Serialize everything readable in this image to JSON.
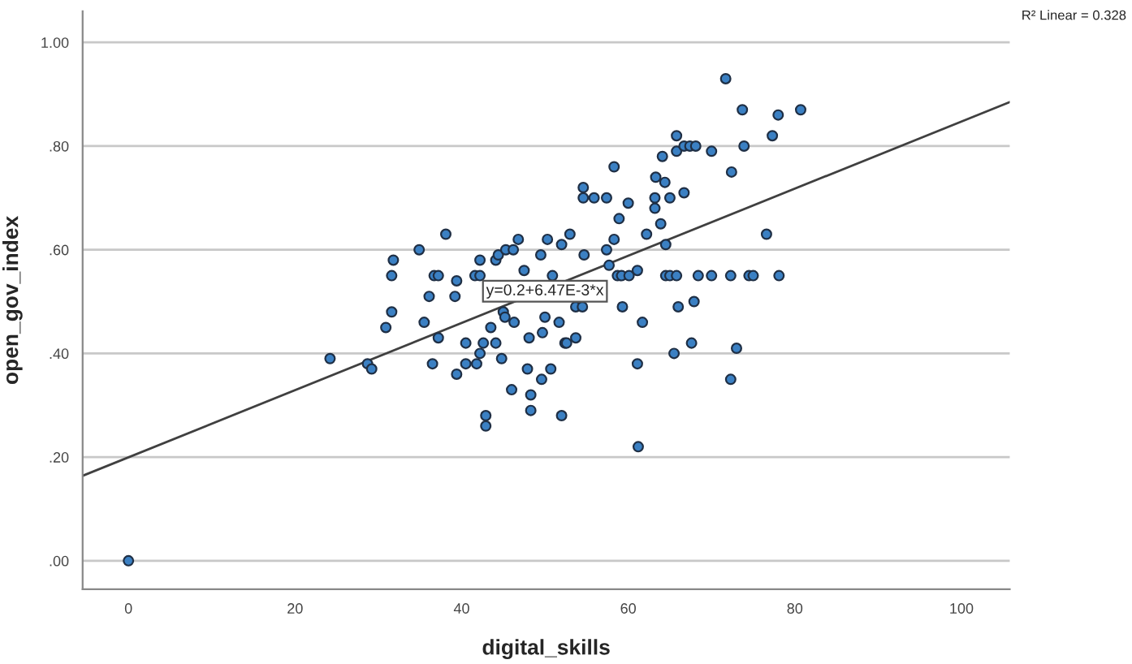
{
  "chart_data": {
    "type": "scatter",
    "xlabel": "digital_skills",
    "ylabel": "open_gov_index",
    "xlim": [
      -5.5,
      105.8
    ],
    "ylim": [
      -0.055,
      1.06
    ],
    "xticks": [
      0,
      20,
      40,
      60,
      80,
      100
    ],
    "yticks": [
      {
        "value": 0,
        "label": ".00"
      },
      {
        "value": 0.2,
        "label": ".20"
      },
      {
        "value": 0.4,
        "label": ".40"
      },
      {
        "value": 0.6,
        "label": ".60"
      },
      {
        "value": 0.8,
        "label": ".80"
      },
      {
        "value": 1.0,
        "label": "1.00"
      }
    ],
    "grid": "y",
    "annotations": [
      {
        "text": "y=0.2+6.47E-3*x",
        "x": 50,
        "y": 0.52
      },
      "R² Linear = 0.328"
    ],
    "series": [
      {
        "type": "scatter",
        "marker": "circle",
        "color": "#3b80c3",
        "x": [
          0,
          24.2,
          28.7,
          29.2,
          30.9,
          31.6,
          31.6,
          31.8,
          34.9,
          38.1,
          35.5,
          36.1,
          36.7,
          37.2,
          37.2,
          36.5,
          39.2,
          39.4,
          39.4,
          40.5,
          40.5,
          41.8,
          42.2,
          42.6,
          44.1,
          43.5,
          44.8,
          41.6,
          42.2,
          42.2,
          44.1,
          44.4,
          45.3,
          46.2,
          46.8,
          47.5,
          45.0,
          45.2,
          46.3,
          46.0,
          48.3,
          48.3,
          42.9,
          42.9,
          47.9,
          49.6,
          50.7,
          52.0,
          48.1,
          49.7,
          50.0,
          51.7,
          50.3,
          49.5,
          52.0,
          50.9,
          52.4,
          53.0,
          54.6,
          54.6,
          55.9,
          57.4,
          58.3,
          60.0,
          58.9,
          58.3,
          57.4,
          54.7,
          57.7,
          61.1,
          58.7,
          59.2,
          60.1,
          64.5,
          65.0,
          65.8,
          68.4,
          70.0,
          72.3,
          74.5,
          75.0,
          78.1,
          53.7,
          54.5,
          59.3,
          52.6,
          53.7,
          61.7,
          66.0,
          67.9,
          67.6,
          65.5,
          73.0,
          72.3,
          61.1,
          61.2,
          62.2,
          64.5,
          63.9,
          63.2,
          63.2,
          65.0,
          66.7,
          63.3,
          64.4,
          64.1,
          65.8,
          66.7,
          67.4,
          68.1,
          65.8,
          70.0,
          72.4,
          73.9,
          71.7,
          73.7,
          77.3,
          78.0,
          80.7,
          76.6
        ],
        "values": [
          0,
          0.39,
          0.38,
          0.37,
          0.45,
          0.48,
          0.55,
          0.58,
          0.6,
          0.63,
          0.46,
          0.51,
          0.55,
          0.55,
          0.43,
          0.38,
          0.51,
          0.54,
          0.36,
          0.42,
          0.38,
          0.38,
          0.4,
          0.42,
          0.42,
          0.45,
          0.39,
          0.55,
          0.55,
          0.58,
          0.58,
          0.59,
          0.6,
          0.6,
          0.62,
          0.56,
          0.48,
          0.47,
          0.46,
          0.33,
          0.32,
          0.29,
          0.28,
          0.26,
          0.37,
          0.35,
          0.37,
          0.28,
          0.43,
          0.44,
          0.47,
          0.46,
          0.62,
          0.59,
          0.61,
          0.55,
          0.42,
          0.63,
          0.72,
          0.7,
          0.7,
          0.7,
          0.76,
          0.69,
          0.66,
          0.62,
          0.6,
          0.59,
          0.57,
          0.56,
          0.55,
          0.55,
          0.55,
          0.55,
          0.55,
          0.55,
          0.55,
          0.55,
          0.55,
          0.55,
          0.55,
          0.55,
          0.49,
          0.49,
          0.49,
          0.42,
          0.43,
          0.46,
          0.49,
          0.5,
          0.42,
          0.4,
          0.41,
          0.35,
          0.38,
          0.22,
          0.63,
          0.61,
          0.65,
          0.68,
          0.7,
          0.7,
          0.71,
          0.74,
          0.73,
          0.78,
          0.79,
          0.8,
          0.8,
          0.8,
          0.82,
          0.79,
          0.75,
          0.8,
          0.93,
          0.87,
          0.82,
          0.86,
          0.87,
          0.63
        ]
      },
      {
        "type": "line",
        "color": "#404040",
        "x": [
          -5.5,
          105.8
        ],
        "values": [
          0.164,
          0.885
        ]
      }
    ]
  }
}
